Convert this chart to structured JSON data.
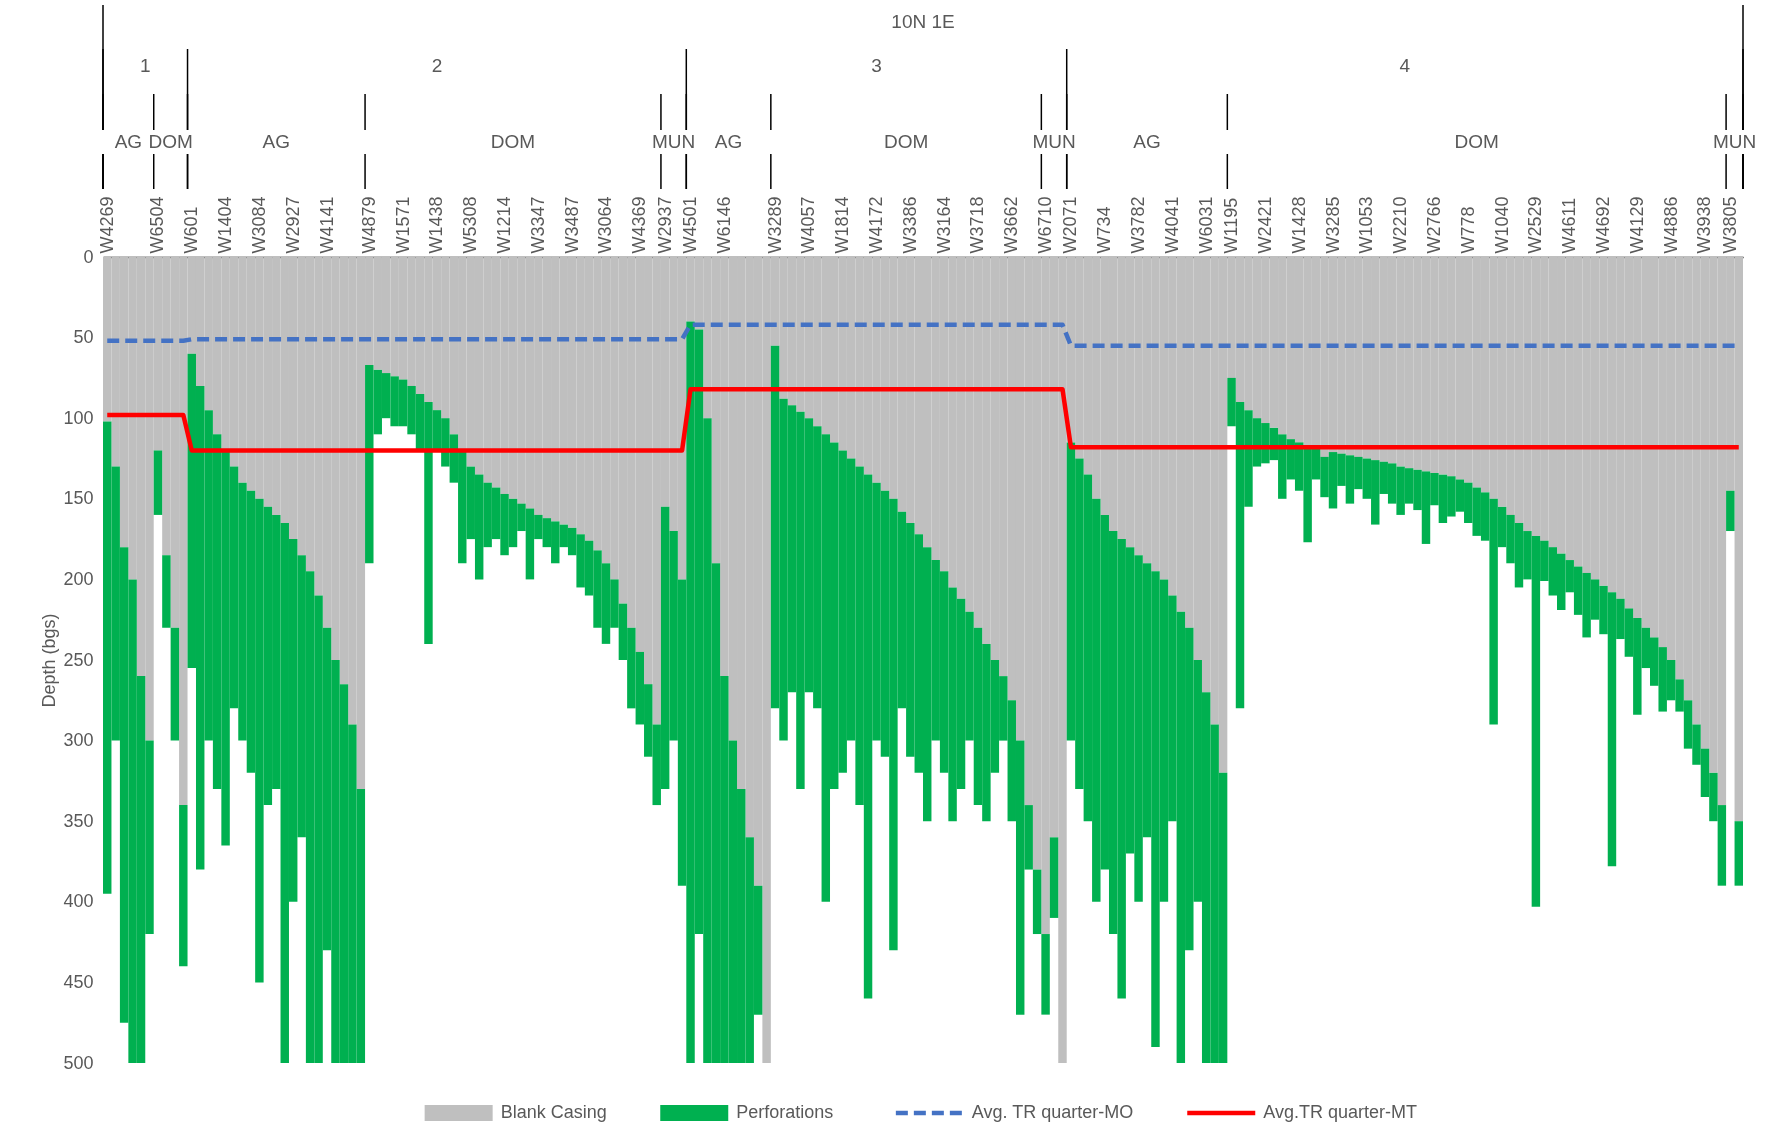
{
  "chart_data": {
    "type": "bar",
    "stacked": true,
    "ylabel": "Depth (bgs)",
    "ylim": [
      500,
      0
    ],
    "yticks": [
      0,
      50,
      100,
      150,
      200,
      250,
      300,
      350,
      400,
      450,
      500
    ],
    "legend": "bottom",
    "categories": [
      "W4269",
      null,
      null,
      null,
      null,
      null,
      "W6504",
      null,
      null,
      null,
      "W601",
      null,
      null,
      null,
      "W1404",
      null,
      null,
      null,
      "W3084",
      null,
      null,
      null,
      "W2927",
      null,
      null,
      null,
      "W4141",
      null,
      null,
      null,
      null,
      "W4879",
      null,
      null,
      null,
      "W1571",
      null,
      null,
      null,
      "W1438",
      null,
      null,
      null,
      "W5308",
      null,
      null,
      null,
      "W1214",
      null,
      null,
      null,
      "W3347",
      null,
      null,
      null,
      "W3487",
      null,
      null,
      null,
      "W3064",
      null,
      null,
      null,
      "W4369",
      null,
      null,
      "W2937",
      null,
      null,
      "W4501",
      null,
      null,
      null,
      "W6146",
      null,
      null,
      null,
      null,
      null,
      "W3289",
      null,
      null,
      null,
      "W4057",
      null,
      null,
      null,
      "W1814",
      null,
      null,
      null,
      "W4172",
      null,
      null,
      null,
      "W3386",
      null,
      null,
      null,
      "W3164",
      null,
      null,
      null,
      "W3718",
      null,
      null,
      null,
      "W3662",
      null,
      null,
      null,
      "W6710",
      null,
      null,
      "W2071",
      null,
      null,
      null,
      "W734",
      null,
      null,
      null,
      "W3782",
      null,
      null,
      null,
      "W4041",
      null,
      null,
      null,
      "W6031",
      null,
      null,
      "W1195",
      null,
      null,
      null,
      "W2421",
      null,
      null,
      null,
      "W1428",
      null,
      null,
      null,
      "W3285",
      null,
      null,
      null,
      "W1053",
      null,
      null,
      null,
      "W2210",
      null,
      null,
      null,
      "W2766",
      null,
      null,
      null,
      "W778",
      null,
      null,
      null,
      "W1040",
      null,
      null,
      null,
      "W2529",
      null,
      null,
      null,
      "W4611",
      null,
      null,
      null,
      "W4692",
      null,
      null,
      null,
      "W4129",
      null,
      null,
      null,
      "W4886",
      null,
      null,
      null,
      "W3938",
      null,
      null,
      "W3805",
      null
    ],
    "series": [
      {
        "name": "Blank Casing",
        "color": "#bfbfbf",
        "values": [
          102,
          130,
          180,
          200,
          260,
          300,
          120,
          185,
          230,
          340,
          60,
          80,
          95,
          110,
          120,
          130,
          140,
          145,
          150,
          155,
          160,
          165,
          175,
          185,
          195,
          210,
          230,
          250,
          265,
          290,
          330,
          67,
          70,
          72,
          74,
          76,
          80,
          85,
          90,
          95,
          100,
          110,
          120,
          130,
          135,
          140,
          143,
          147,
          150,
          153,
          156,
          160,
          162,
          164,
          166,
          168,
          172,
          176,
          182,
          190,
          200,
          215,
          230,
          245,
          265,
          290,
          155,
          170,
          200,
          40,
          45,
          100,
          190,
          260,
          300,
          330,
          360,
          390,
          500,
          55,
          88,
          92,
          96,
          100,
          105,
          110,
          115,
          120,
          125,
          130,
          135,
          140,
          145,
          150,
          158,
          165,
          172,
          180,
          188,
          195,
          205,
          212,
          220,
          230,
          240,
          250,
          260,
          275,
          300,
          340,
          380,
          420,
          360,
          500,
          115,
          125,
          135,
          150,
          160,
          170,
          175,
          180,
          185,
          190,
          195,
          200,
          210,
          220,
          230,
          250,
          270,
          290,
          320,
          75,
          90,
          95,
          100,
          103,
          106,
          110,
          113,
          115,
          117,
          118,
          124,
          121,
          122,
          123,
          124,
          125,
          126,
          127,
          128,
          130,
          131,
          132,
          133,
          134,
          135,
          136,
          138,
          140,
          143,
          146,
          150,
          155,
          160,
          165,
          170,
          173,
          176,
          180,
          184,
          188,
          192,
          196,
          200,
          204,
          208,
          212,
          218,
          224,
          230,
          236,
          242,
          250,
          262,
          275,
          290,
          305,
          320,
          340,
          145,
          350
        ]
      },
      {
        "name": "Perforations",
        "color": "#00b050",
        "values": [
          293,
          170,
          295,
          300,
          240,
          120,
          40,
          45,
          70,
          100,
          195,
          300,
          205,
          220,
          245,
          150,
          160,
          175,
          300,
          185,
          170,
          335,
          225,
          175,
          305,
          290,
          200,
          250,
          235,
          210,
          170,
          123,
          40,
          28,
          31,
          29,
          30,
          35,
          150,
          25,
          30,
          30,
          70,
          45,
          65,
          40,
          32,
          38,
          30,
          17,
          44,
          15,
          18,
          26,
          14,
          17,
          33,
          34,
          48,
          50,
          30,
          35,
          50,
          45,
          45,
          50,
          175,
          130,
          190,
          460,
          375,
          400,
          310,
          240,
          200,
          170,
          140,
          80,
          0,
          225,
          212,
          178,
          234,
          170,
          175,
          290,
          215,
          200,
          175,
          210,
          325,
          160,
          165,
          280,
          122,
          145,
          148,
          170,
          112,
          125,
          145,
          118,
          80,
          110,
          110,
          70,
          40,
          75,
          170,
          40,
          40,
          50,
          50,
          0,
          185,
          205,
          215,
          250,
          220,
          250,
          285,
          190,
          215,
          170,
          295,
          200,
          140,
          280,
          200,
          150,
          230,
          210,
          180,
          30,
          190,
          60,
          30,
          25,
          20,
          40,
          25,
          30,
          60,
          20,
          25,
          35,
          20,
          30,
          20,
          25,
          40,
          20,
          25,
          30,
          22,
          25,
          45,
          20,
          30,
          25,
          20,
          25,
          30,
          30,
          140,
          25,
          30,
          40,
          30,
          230,
          25,
          30,
          35,
          20,
          30,
          40,
          25,
          30,
          170,
          25,
          30,
          60,
          25,
          30,
          40,
          25,
          20,
          30,
          25,
          30,
          30,
          50,
          25,
          40
        ]
      },
      {
        "name": "Avg. TR quarter-MO",
        "type": "line",
        "line_style": "dashed",
        "color": "#4472c4",
        "values": [
          52,
          52,
          52,
          52,
          52,
          52,
          52,
          52,
          52,
          52,
          51,
          51,
          51,
          51,
          51,
          51,
          51,
          51,
          51,
          51,
          51,
          51,
          51,
          51,
          51,
          51,
          51,
          51,
          51,
          51,
          51,
          51,
          51,
          51,
          51,
          51,
          51,
          51,
          51,
          51,
          51,
          51,
          51,
          51,
          51,
          51,
          51,
          51,
          51,
          51,
          51,
          51,
          51,
          51,
          51,
          51,
          51,
          51,
          51,
          51,
          51,
          51,
          51,
          51,
          51,
          51,
          51,
          51,
          51,
          42,
          42,
          42,
          42,
          42,
          42,
          42,
          42,
          42,
          42,
          42,
          42,
          42,
          42,
          42,
          42,
          42,
          42,
          42,
          42,
          42,
          42,
          42,
          42,
          42,
          42,
          42,
          42,
          42,
          42,
          42,
          42,
          42,
          42,
          42,
          42,
          42,
          42,
          42,
          42,
          42,
          42,
          42,
          42,
          42,
          55,
          55,
          55,
          55,
          55,
          55,
          55,
          55,
          55,
          55,
          55,
          55,
          55,
          55,
          55,
          55,
          55,
          55,
          55,
          55,
          55,
          55,
          55,
          55,
          55,
          55,
          55,
          55,
          55,
          55,
          55,
          55,
          55,
          55,
          55,
          55,
          55,
          55,
          55,
          55,
          55,
          55,
          55,
          55,
          55,
          55,
          55,
          55,
          55,
          55,
          55,
          55,
          55,
          55,
          55,
          55,
          55,
          55,
          55,
          55,
          55,
          55,
          55,
          55,
          55,
          55,
          55,
          55,
          55,
          55,
          55,
          55,
          55,
          55,
          55,
          55,
          55,
          55,
          55,
          55
        ]
      },
      {
        "name": "Avg.TR quarter-MT",
        "type": "line",
        "line_style": "solid",
        "color": "#ff0000",
        "values": [
          98,
          98,
          98,
          98,
          98,
          98,
          98,
          98,
          98,
          98,
          120,
          120,
          120,
          120,
          120,
          120,
          120,
          120,
          120,
          120,
          120,
          120,
          120,
          120,
          120,
          120,
          120,
          120,
          120,
          120,
          120,
          120,
          120,
          120,
          120,
          120,
          120,
          120,
          120,
          120,
          120,
          120,
          120,
          120,
          120,
          120,
          120,
          120,
          120,
          120,
          120,
          120,
          120,
          120,
          120,
          120,
          120,
          120,
          120,
          120,
          120,
          120,
          120,
          120,
          120,
          120,
          120,
          120,
          120,
          82,
          82,
          82,
          82,
          82,
          82,
          82,
          82,
          82,
          82,
          82,
          82,
          82,
          82,
          82,
          82,
          82,
          82,
          82,
          82,
          82,
          82,
          82,
          82,
          82,
          82,
          82,
          82,
          82,
          82,
          82,
          82,
          82,
          82,
          82,
          82,
          82,
          82,
          82,
          82,
          82,
          82,
          82,
          82,
          82,
          118,
          118,
          118,
          118,
          118,
          118,
          118,
          118,
          118,
          118,
          118,
          118,
          118,
          118,
          118,
          118,
          118,
          118,
          118,
          118,
          118,
          118,
          118,
          118,
          118,
          118,
          118,
          118,
          118,
          118,
          118,
          118,
          118,
          118,
          118,
          118,
          118,
          118,
          118,
          118,
          118,
          118,
          118,
          118,
          118,
          118,
          118,
          118,
          118,
          118,
          118,
          118,
          118,
          118,
          118,
          118,
          118,
          118,
          118,
          118,
          118,
          118,
          118,
          118,
          118,
          118,
          118,
          118,
          118,
          118,
          118,
          118,
          118,
          118,
          118,
          118,
          118,
          118,
          118,
          118
        ]
      }
    ],
    "annotations": [
      "10N 1E",
      "1",
      "2",
      "3",
      "4",
      "AG",
      "DOM",
      "AG",
      "DOM",
      "MUN",
      "AG",
      "DOM",
      "MUN",
      "AG",
      "DOM",
      "MUN"
    ]
  }
}
